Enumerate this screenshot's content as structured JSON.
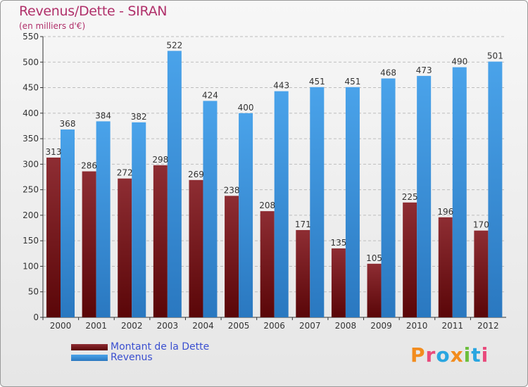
{
  "page": {
    "title": "Revenus/Dette - SIRAN",
    "subtitle": "(en milliers d'€)"
  },
  "colors": {
    "dette": "#7a1a1f",
    "revenus": "#3b90d8",
    "grid": "#bdbdbd",
    "title": "#b0306a",
    "legend_text": "#3a4fd0"
  },
  "legend": [
    {
      "label": "Montant de la Dette",
      "color": "#7a1a1f"
    },
    {
      "label": "Revenus",
      "color": "#3b90d8"
    }
  ],
  "logo": {
    "text": "Proxiti",
    "letters": [
      {
        "char": "P",
        "color": "#f28c1e"
      },
      {
        "char": "r",
        "color": "#e94a7c"
      },
      {
        "char": "o",
        "color": "#2aa6e0"
      },
      {
        "char": "x",
        "color": "#f28c1e"
      },
      {
        "char": "i",
        "color": "#6cbf3c"
      },
      {
        "char": "t",
        "color": "#2aa6e0"
      },
      {
        "char": "i",
        "color": "#e94a7c"
      }
    ]
  },
  "chart_data": {
    "type": "bar",
    "title": "Revenus/Dette - SIRAN",
    "subtitle": "(en milliers d'€)",
    "categories": [
      "2000",
      "2001",
      "2002",
      "2003",
      "2004",
      "2005",
      "2006",
      "2007",
      "2008",
      "2009",
      "2010",
      "2011",
      "2012"
    ],
    "series": [
      {
        "name": "Montant de la Dette",
        "values": [
          313,
          286,
          272,
          298,
          269,
          238,
          208,
          171,
          135,
          105,
          225,
          196,
          170
        ]
      },
      {
        "name": "Revenus",
        "values": [
          368,
          384,
          382,
          522,
          424,
          400,
          443,
          451,
          451,
          468,
          473,
          490,
          501
        ]
      }
    ],
    "ylim": [
      0,
      550
    ],
    "yticks": [
      0,
      50,
      100,
      150,
      200,
      250,
      300,
      350,
      400,
      450,
      500,
      550
    ],
    "grid": true,
    "legend_position": "bottom-left"
  }
}
